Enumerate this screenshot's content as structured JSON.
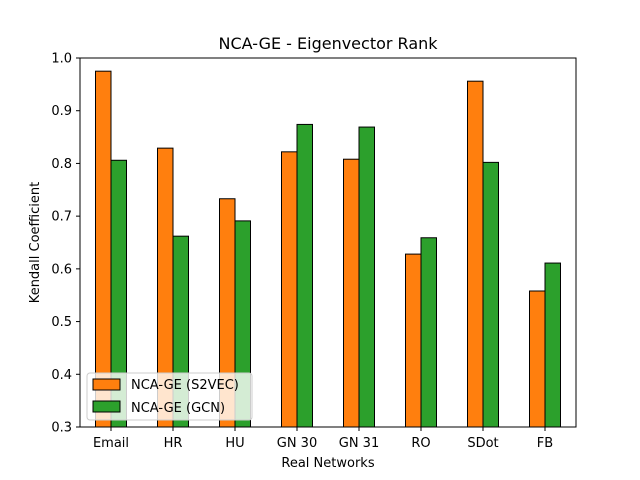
{
  "chart_data": {
    "type": "bar",
    "title": "NCA-GE - Eigenvector Rank",
    "xlabel": "Real Networks",
    "ylabel": "Kendall Coefficient",
    "categories": [
      "Email",
      "HR",
      "HU",
      "GN 30",
      "GN 31",
      "RO",
      "SDot",
      "FB"
    ],
    "series": [
      {
        "name": "NCA-GE (S2VEC)",
        "color": "#ff7f0e",
        "values": [
          0.975,
          0.829,
          0.733,
          0.822,
          0.808,
          0.628,
          0.956,
          0.558
        ]
      },
      {
        "name": "NCA-GE (GCN)",
        "color": "#2ca02c",
        "values": [
          0.806,
          0.662,
          0.691,
          0.874,
          0.869,
          0.659,
          0.802,
          0.611
        ]
      }
    ],
    "ylim": [
      0.3,
      1.0
    ],
    "yticks": [
      "0.3",
      "0.4",
      "0.5",
      "0.6",
      "0.7",
      "0.8",
      "0.9",
      "1.0"
    ],
    "grid": false,
    "legend_position": "lower-left"
  }
}
